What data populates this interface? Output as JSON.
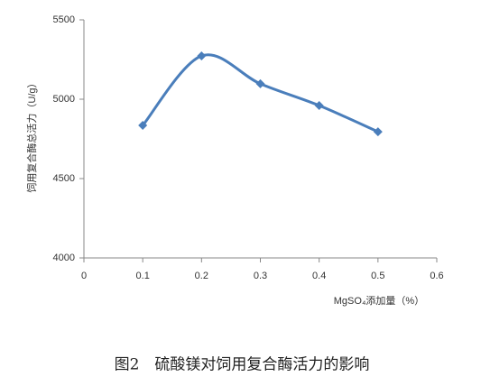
{
  "chart_data": {
    "type": "line",
    "x": [
      0.1,
      0.2,
      0.3,
      0.4,
      0.5
    ],
    "series": [
      {
        "color": "#4a7ebb",
        "values": [
          4835,
          5273,
          5097,
          4960,
          4795
        ]
      }
    ],
    "xlim": [
      0,
      0.6
    ],
    "xticks": [
      0,
      0.1,
      0.2,
      0.3,
      0.4,
      0.5,
      0.6
    ],
    "ylim": [
      4000,
      5500
    ],
    "yticks": [
      4000,
      4500,
      5000,
      5500
    ],
    "smooth": true,
    "ylabel": "饲用复合酶总活力（U/g）",
    "xlabel": "MgSO₄添加量（%）",
    "caption": "图2　硫酸镁对饲用复合酶活力的影响"
  }
}
